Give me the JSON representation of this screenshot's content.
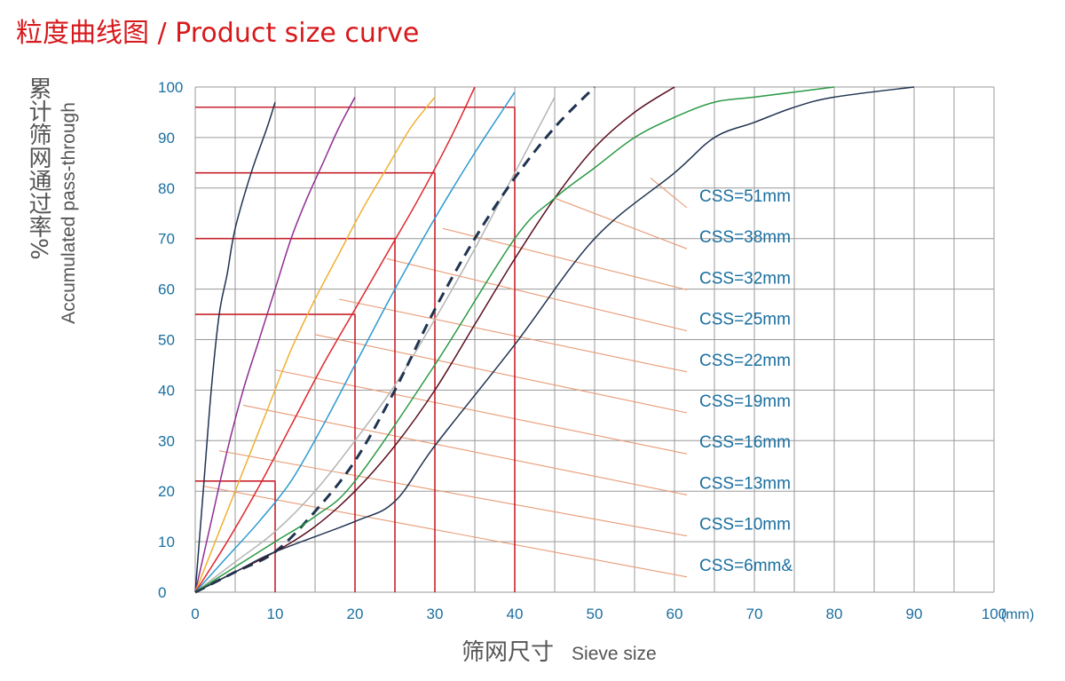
{
  "chart_data": {
    "type": "line",
    "title": "粒度曲线图 / Product size curve",
    "ylabel_zh": "累计筛网通过率",
    "ylabel_pct": "%",
    "ylabel_en": "Accumulated pass-through",
    "xlabel_zh": "筛网尺寸",
    "xlabel_en": "Sieve size",
    "x_unit": "(mm)",
    "xlim": [
      0,
      100
    ],
    "ylim": [
      0,
      100
    ],
    "x_ticks": [
      0,
      10,
      20,
      30,
      40,
      50,
      60,
      70,
      80,
      90,
      100
    ],
    "y_ticks": [
      0,
      10,
      20,
      30,
      40,
      50,
      60,
      70,
      80,
      90,
      100
    ],
    "grid": true,
    "series": [
      {
        "name": "CSS=6mm&",
        "color": "#1f3350",
        "dashed": false,
        "x": [
          0,
          1,
          2,
          3,
          4,
          5,
          7,
          9,
          10
        ],
        "y": [
          0,
          20,
          40,
          55,
          63,
          72,
          83,
          92,
          97
        ]
      },
      {
        "name": "CSS=10mm",
        "color": "#8e2e91",
        "dashed": false,
        "x": [
          0,
          2,
          4,
          6,
          8,
          10,
          12,
          14,
          16,
          18,
          20
        ],
        "y": [
          0,
          14,
          28,
          40,
          50,
          60,
          70,
          78,
          85,
          92,
          98
        ]
      },
      {
        "name": "CSS=13mm",
        "color": "#f0b032",
        "dashed": false,
        "x": [
          0,
          3,
          6,
          9,
          12,
          15,
          18,
          21,
          24,
          27,
          30
        ],
        "y": [
          0,
          12,
          24,
          36,
          48,
          58,
          67,
          76,
          84,
          92,
          98
        ]
      },
      {
        "name": "CSS=16mm",
        "color": "#e0262b",
        "dashed": false,
        "x": [
          0,
          4,
          8,
          12,
          16,
          20,
          24,
          28,
          32,
          35
        ],
        "y": [
          0,
          10,
          21,
          33,
          45,
          56,
          67,
          78,
          90,
          100
        ]
      },
      {
        "name": "CSS=19mm",
        "color": "#2c9ad0",
        "dashed": false,
        "x": [
          0,
          4,
          8,
          12,
          16,
          20,
          25,
          30,
          35,
          40
        ],
        "y": [
          0,
          7,
          14,
          22,
          33,
          45,
          60,
          74,
          87,
          99
        ]
      },
      {
        "name": "CSS=22mm",
        "color": "#b4b4b4",
        "dashed": false,
        "x": [
          0,
          5,
          10,
          15,
          20,
          25,
          30,
          35,
          40,
          45
        ],
        "y": [
          0,
          6,
          12,
          20,
          30,
          41,
          54,
          68,
          83,
          98
        ]
      },
      {
        "name": "CSS=25mm",
        "color": "#1f3350",
        "dashed": true,
        "x": [
          0,
          5,
          10,
          15,
          20,
          25,
          30,
          35,
          40,
          45,
          50
        ],
        "y": [
          0,
          4,
          8,
          16,
          26,
          40,
          56,
          70,
          82,
          92,
          100
        ]
      },
      {
        "name": "CSS=32mm",
        "color": "#5a0e1e",
        "dashed": false,
        "x": [
          0,
          5,
          10,
          15,
          20,
          25,
          30,
          35,
          40,
          45,
          50,
          55,
          60
        ],
        "y": [
          0,
          4,
          8,
          13,
          20,
          29,
          40,
          53,
          66,
          78,
          88,
          95,
          100
        ]
      },
      {
        "name": "CSS=38mm",
        "color": "#2a9a45",
        "dashed": false,
        "x": [
          0,
          5,
          10,
          15,
          20,
          30,
          40,
          45,
          50,
          55,
          60,
          65,
          70,
          80
        ],
        "y": [
          0,
          5,
          10,
          15,
          22,
          45,
          70,
          78,
          84,
          90,
          94,
          97,
          98,
          100
        ]
      },
      {
        "name": "CSS=51mm",
        "color": "#1f3350",
        "dashed": false,
        "x": [
          0,
          5,
          10,
          20,
          25,
          30,
          40,
          50,
          60,
          65,
          70,
          75,
          80,
          90
        ],
        "y": [
          0,
          4,
          8,
          14,
          18,
          29,
          49,
          70,
          83,
          90,
          93,
          96,
          98,
          100
        ]
      }
    ],
    "annotations": {
      "color": "#e89a75",
      "labels": [
        {
          "text": "CSS=51mm",
          "target": [
            57,
            82
          ]
        },
        {
          "text": "CSS=38mm",
          "target": [
            45,
            78
          ]
        },
        {
          "text": "CSS=32mm",
          "target": [
            31,
            72
          ]
        },
        {
          "text": "CSS=25mm",
          "target": [
            24,
            66
          ]
        },
        {
          "text": "CSS=22mm",
          "target": [
            18,
            58
          ]
        },
        {
          "text": "CSS=19mm",
          "target": [
            15,
            51
          ]
        },
        {
          "text": "CSS=16mm",
          "target": [
            10,
            44
          ]
        },
        {
          "text": "CSS=13mm",
          "target": [
            6,
            37
          ]
        },
        {
          "text": "CSS=10mm",
          "target": [
            3,
            28
          ]
        },
        {
          "text": "CSS=6mm&",
          "target": [
            1,
            21
          ]
        }
      ]
    },
    "reference_lines": {
      "color": "#c8222c",
      "points": [
        {
          "x": 10,
          "y": 22
        },
        {
          "x": 20,
          "y": 55
        },
        {
          "x": 25,
          "y": 70
        },
        {
          "x": 30,
          "y": 83
        },
        {
          "x": 40,
          "y": 96
        }
      ]
    }
  }
}
